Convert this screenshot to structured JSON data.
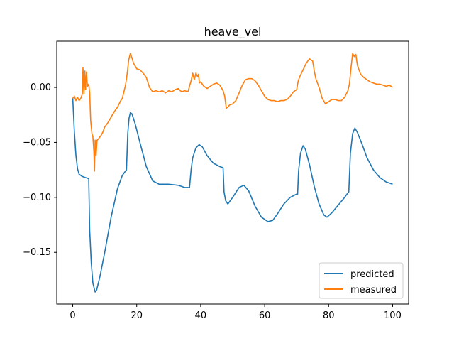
{
  "chart_data": {
    "type": "line",
    "title": "heave_vel",
    "xlabel": "",
    "ylabel": "",
    "xlim": [
      -5,
      105
    ],
    "ylim": [
      -0.197,
      0.042
    ],
    "xticks": [
      0,
      20,
      40,
      60,
      80,
      100
    ],
    "xtick_labels": [
      "0",
      "20",
      "40",
      "60",
      "80",
      "100"
    ],
    "yticks": [
      -0.15,
      -0.1,
      -0.05,
      0.0
    ],
    "ytick_labels": [
      "−0.15",
      "−0.10",
      "−0.05",
      "0.00"
    ],
    "grid": false,
    "legend_position": "lower-right",
    "series": [
      {
        "name": "predicted",
        "color": "#1f77b4",
        "points": [
          [
            0,
            -0.01
          ],
          [
            0.5,
            -0.04
          ],
          [
            1,
            -0.062
          ],
          [
            1.5,
            -0.074
          ],
          [
            2,
            -0.079
          ],
          [
            3,
            -0.081
          ],
          [
            4,
            -0.082
          ],
          [
            5,
            -0.083
          ],
          [
            5.3,
            -0.13
          ],
          [
            5.8,
            -0.16
          ],
          [
            6.3,
            -0.178
          ],
          [
            7,
            -0.186
          ],
          [
            7.5,
            -0.184
          ],
          [
            8.5,
            -0.172
          ],
          [
            10,
            -0.15
          ],
          [
            12,
            -0.118
          ],
          [
            14,
            -0.092
          ],
          [
            15.5,
            -0.08
          ],
          [
            16.5,
            -0.076
          ],
          [
            16.8,
            -0.075
          ],
          [
            17.2,
            -0.042
          ],
          [
            17.6,
            -0.028
          ],
          [
            18,
            -0.023
          ],
          [
            18.5,
            -0.024
          ],
          [
            19.5,
            -0.033
          ],
          [
            21,
            -0.05
          ],
          [
            23,
            -0.072
          ],
          [
            25,
            -0.085
          ],
          [
            27,
            -0.088
          ],
          [
            30,
            -0.088
          ],
          [
            33,
            -0.089
          ],
          [
            35,
            -0.091
          ],
          [
            36.5,
            -0.091
          ],
          [
            37,
            -0.075
          ],
          [
            37.5,
            -0.064
          ],
          [
            38.5,
            -0.055
          ],
          [
            39.5,
            -0.052
          ],
          [
            40.5,
            -0.054
          ],
          [
            42,
            -0.062
          ],
          [
            44,
            -0.069
          ],
          [
            46,
            -0.072
          ],
          [
            47,
            -0.073
          ],
          [
            47.3,
            -0.095
          ],
          [
            47.8,
            -0.103
          ],
          [
            48.5,
            -0.106
          ],
          [
            50,
            -0.1
          ],
          [
            52,
            -0.091
          ],
          [
            53.5,
            -0.089
          ],
          [
            55,
            -0.094
          ],
          [
            57,
            -0.108
          ],
          [
            59,
            -0.118
          ],
          [
            61,
            -0.122
          ],
          [
            62.5,
            -0.121
          ],
          [
            64,
            -0.115
          ],
          [
            66,
            -0.106
          ],
          [
            68,
            -0.1
          ],
          [
            70,
            -0.097
          ],
          [
            70.3,
            -0.097
          ],
          [
            70.6,
            -0.076
          ],
          [
            71.2,
            -0.06
          ],
          [
            72,
            -0.053
          ],
          [
            72.7,
            -0.056
          ],
          [
            74,
            -0.07
          ],
          [
            75.5,
            -0.09
          ],
          [
            77,
            -0.106
          ],
          [
            78.5,
            -0.116
          ],
          [
            79.5,
            -0.118
          ],
          [
            81,
            -0.114
          ],
          [
            83,
            -0.107
          ],
          [
            85,
            -0.1
          ],
          [
            86,
            -0.096
          ],
          [
            86.3,
            -0.095
          ],
          [
            86.8,
            -0.06
          ],
          [
            87.5,
            -0.042
          ],
          [
            88.2,
            -0.037
          ],
          [
            89,
            -0.041
          ],
          [
            90.5,
            -0.052
          ],
          [
            92,
            -0.064
          ],
          [
            94,
            -0.075
          ],
          [
            96,
            -0.082
          ],
          [
            98,
            -0.086
          ],
          [
            100,
            -0.088
          ]
        ]
      },
      {
        "name": "measured",
        "color": "#ff7f0e",
        "points": [
          [
            0,
            -0.01
          ],
          [
            0.5,
            -0.008
          ],
          [
            1,
            -0.012
          ],
          [
            1.5,
            -0.009
          ],
          [
            2,
            -0.012
          ],
          [
            2.5,
            -0.01
          ],
          [
            3,
            -0.006
          ],
          [
            3.2,
            0.018
          ],
          [
            3.5,
            -0.006
          ],
          [
            3.8,
            0.015
          ],
          [
            4,
            -0.002
          ],
          [
            4.3,
            0.014
          ],
          [
            4.6,
            0.001
          ],
          [
            5,
            0.003
          ],
          [
            5.3,
            -0.005
          ],
          [
            5.6,
            -0.03
          ],
          [
            6,
            -0.042
          ],
          [
            6.3,
            -0.045
          ],
          [
            6.6,
            -0.058
          ],
          [
            6.8,
            -0.076
          ],
          [
            7,
            -0.048
          ],
          [
            7.3,
            -0.062
          ],
          [
            7.6,
            -0.048
          ],
          [
            8,
            -0.047
          ],
          [
            8.5,
            -0.045
          ],
          [
            9,
            -0.043
          ],
          [
            9.5,
            -0.04
          ],
          [
            10,
            -0.036
          ],
          [
            11,
            -0.032
          ],
          [
            12,
            -0.027
          ],
          [
            13,
            -0.022
          ],
          [
            14,
            -0.018
          ],
          [
            15,
            -0.012
          ],
          [
            15.5,
            -0.01
          ],
          [
            16,
            -0.004
          ],
          [
            16.5,
            0.002
          ],
          [
            17,
            0.012
          ],
          [
            17.5,
            0.025
          ],
          [
            18,
            0.031
          ],
          [
            18.5,
            0.027
          ],
          [
            19,
            0.022
          ],
          [
            20,
            0.017
          ],
          [
            21,
            0.016
          ],
          [
            22,
            0.013
          ],
          [
            23,
            0.009
          ],
          [
            24,
            0.0
          ],
          [
            25,
            -0.004
          ],
          [
            26,
            -0.003
          ],
          [
            27,
            -0.004
          ],
          [
            28,
            -0.003
          ],
          [
            29,
            -0.005
          ],
          [
            30,
            -0.003
          ],
          [
            31,
            -0.004
          ],
          [
            32,
            -0.002
          ],
          [
            33,
            -0.001
          ],
          [
            34,
            -0.004
          ],
          [
            35,
            -0.003
          ],
          [
            36,
            -0.004
          ],
          [
            37,
            0.006
          ],
          [
            37.5,
            0.013
          ],
          [
            38,
            0.007
          ],
          [
            38.5,
            0.013
          ],
          [
            39,
            0.01
          ],
          [
            39.3,
            0.012
          ],
          [
            39.6,
            0.004
          ],
          [
            40,
            0.005
          ],
          [
            41,
            0.001
          ],
          [
            42,
            -0.001
          ],
          [
            43,
            0.001
          ],
          [
            44,
            0.003
          ],
          [
            45,
            0.004
          ],
          [
            46,
            0.002
          ],
          [
            47,
            -0.003
          ],
          [
            47.5,
            -0.008
          ],
          [
            48,
            -0.019
          ],
          [
            48.5,
            -0.018
          ],
          [
            49,
            -0.016
          ],
          [
            50,
            -0.015
          ],
          [
            51,
            -0.012
          ],
          [
            52,
            -0.005
          ],
          [
            53,
            0.002
          ],
          [
            54,
            0.007
          ],
          [
            55,
            0.008
          ],
          [
            56,
            0.008
          ],
          [
            57,
            0.006
          ],
          [
            58,
            0.002
          ],
          [
            59,
            -0.003
          ],
          [
            60,
            -0.008
          ],
          [
            61,
            -0.011
          ],
          [
            62,
            -0.012
          ],
          [
            63,
            -0.012
          ],
          [
            64,
            -0.013
          ],
          [
            65,
            -0.012
          ],
          [
            66,
            -0.012
          ],
          [
            67,
            -0.011
          ],
          [
            68,
            -0.008
          ],
          [
            69,
            -0.004
          ],
          [
            70,
            -0.002
          ],
          [
            70.5,
            0.006
          ],
          [
            71,
            0.01
          ],
          [
            72,
            0.016
          ],
          [
            73,
            0.022
          ],
          [
            74,
            0.026
          ],
          [
            75,
            0.024
          ],
          [
            75.5,
            0.015
          ],
          [
            76,
            0.008
          ],
          [
            77,
            0.0
          ],
          [
            78,
            -0.01
          ],
          [
            79,
            -0.015
          ],
          [
            80,
            -0.013
          ],
          [
            81,
            -0.011
          ],
          [
            82,
            -0.011
          ],
          [
            83,
            -0.012
          ],
          [
            84,
            -0.012
          ],
          [
            85,
            -0.009
          ],
          [
            86,
            -0.003
          ],
          [
            86.5,
            0.003
          ],
          [
            87,
            0.018
          ],
          [
            87.5,
            0.031
          ],
          [
            88,
            0.028
          ],
          [
            88.5,
            0.03
          ],
          [
            89,
            0.02
          ],
          [
            90,
            0.012
          ],
          [
            91,
            0.009
          ],
          [
            92,
            0.007
          ],
          [
            93,
            0.005
          ],
          [
            94,
            0.004
          ],
          [
            95,
            0.003
          ],
          [
            96,
            0.003
          ],
          [
            97,
            0.002
          ],
          [
            98,
            0.001
          ],
          [
            99,
            0.002
          ],
          [
            100,
            0.0
          ]
        ]
      }
    ]
  }
}
